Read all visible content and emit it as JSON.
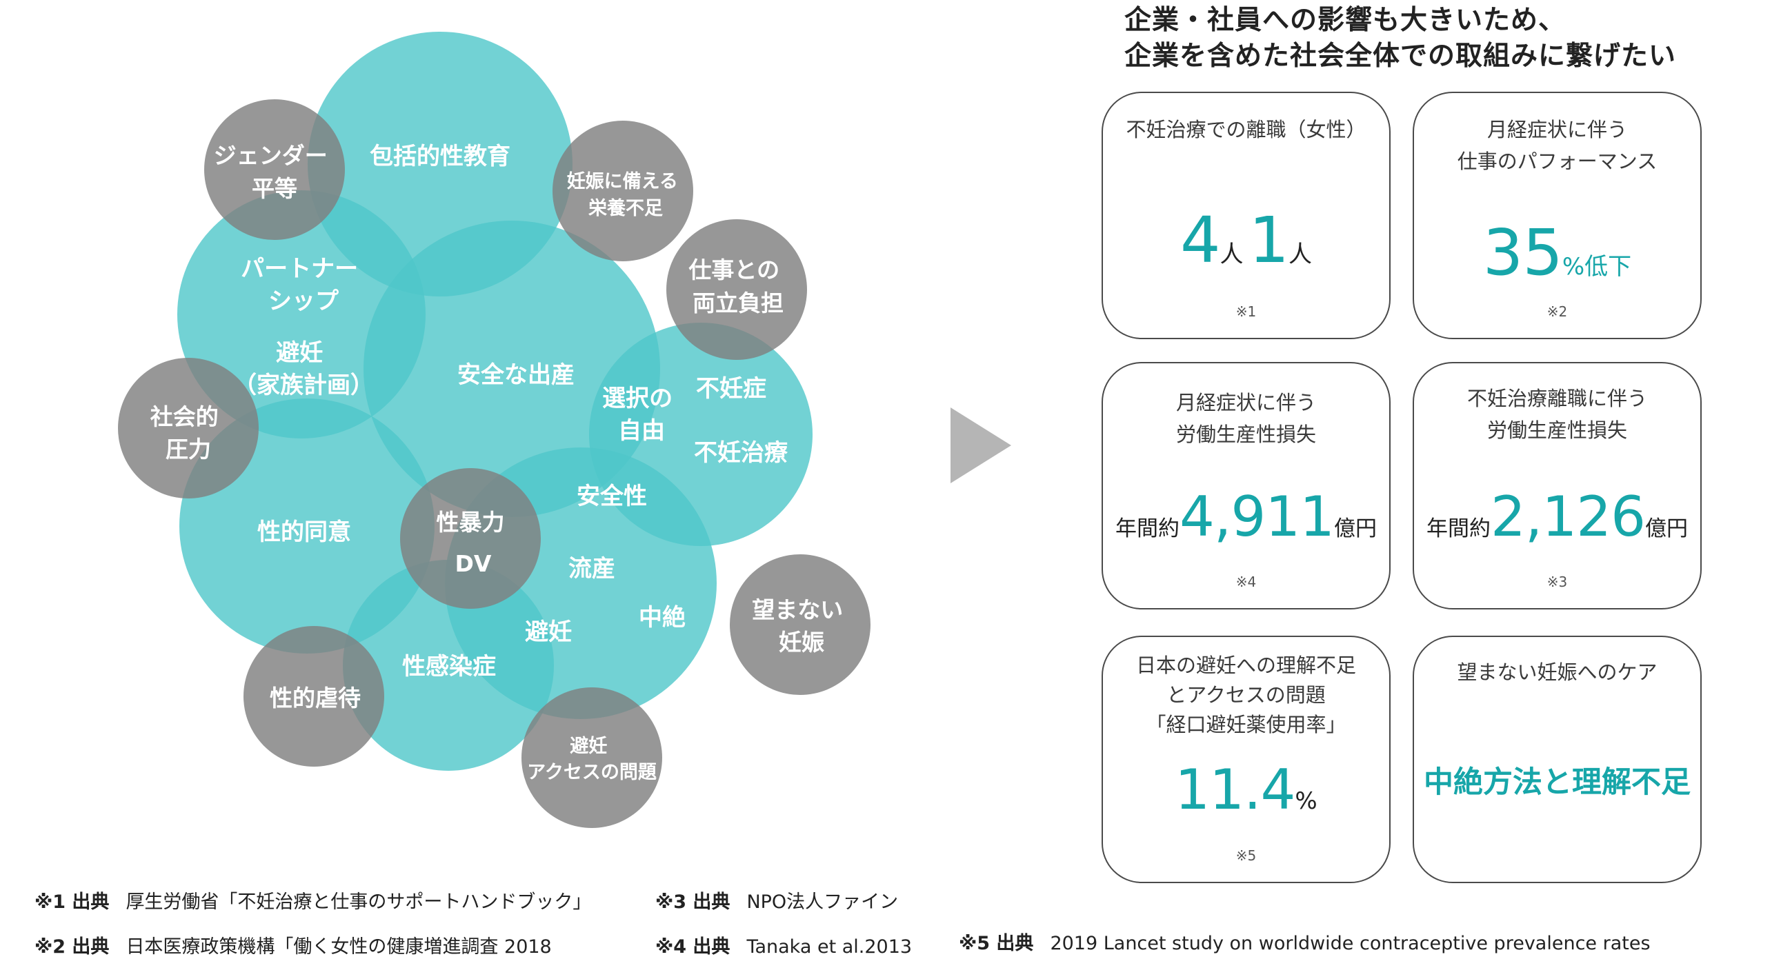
{
  "diagram": {
    "colors": {
      "teal": "#4fc7c9",
      "gray": "#808080",
      "text": "#ffffff"
    },
    "labels": {
      "gender_equality": [
        "ジェンダー",
        "平等"
      ],
      "comprehensive_sex_ed": "包括的性教育",
      "pregnancy_nutrition": [
        "妊娠に備える",
        "栄養不足"
      ],
      "work_balance": [
        "仕事との",
        "両立負担"
      ],
      "partnership": [
        "パートナー",
        "シップ"
      ],
      "contraception_family": [
        "避妊",
        "（家族計画）"
      ],
      "safe_birth": "安全な出産",
      "social_pressure": [
        "社会的",
        "圧力"
      ],
      "choice_freedom": [
        "選択の",
        "自由"
      ],
      "infertility": "不妊症",
      "infertility_treatment": "不妊治療",
      "safety": "安全性",
      "sexual_consent": "性的同意",
      "sexual_violence": "性暴力",
      "dv": "DV",
      "miscarriage": "流産",
      "abortion": "中絶",
      "unwanted_pregnancy": [
        "望まない",
        "妊娠"
      ],
      "contraception": "避妊",
      "sti": "性感染症",
      "sexual_abuse": "性的虐待",
      "contraception_access": [
        "避妊",
        "アクセスの問題"
      ]
    }
  },
  "heading": {
    "line1": "企業・社員への影響も大きいため、",
    "line2": "企業を含めた社会全体での取組みに繋げたい"
  },
  "cards": [
    {
      "title": [
        "不妊治療での離職（女性）"
      ],
      "value": {
        "a": "4",
        "a_unit": "人",
        "b": "1",
        "b_unit": "人"
      },
      "note": "※1"
    },
    {
      "title": [
        "月経症状に伴う",
        "仕事のパフォーマンス"
      ],
      "value": {
        "number": "35",
        "suffix": "%低下"
      },
      "note": "※2"
    },
    {
      "title": [
        "月経症状に伴う",
        "労働生産性損失"
      ],
      "value": {
        "prefix": "年間約",
        "number": "4,911",
        "suffix": "億円"
      },
      "note": "※4"
    },
    {
      "title": [
        "不妊治療離職に伴う",
        "労働生産性損失"
      ],
      "value": {
        "prefix": "年間約",
        "number": "2,126",
        "suffix": "億円"
      },
      "note": "※3"
    },
    {
      "title": [
        "日本の避妊への理解不足",
        "とアクセスの問題",
        "「経口避妊薬使用率」"
      ],
      "value": {
        "number": "11.4",
        "suffix": "%"
      },
      "note": "※5"
    },
    {
      "title": [
        "望まない妊娠へのケア"
      ],
      "value": {
        "text": "中絶方法と理解不足"
      },
      "note": ""
    }
  ],
  "sources": [
    {
      "label": "※1 出典",
      "text": "厚生労働省「不妊治療と仕事のサポートハンドブック」"
    },
    {
      "label": "※2 出典",
      "text": "日本医療政策機構「働く女性の健康増進調査 2018"
    },
    {
      "label": "※3 出典",
      "text": "NPO法人ファイン"
    },
    {
      "label": "※4 出典",
      "text": "Tanaka et al.2013"
    },
    {
      "label": "※5 出典",
      "text": "2019 Lancet study on worldwide contraceptive prevalence rates"
    }
  ]
}
